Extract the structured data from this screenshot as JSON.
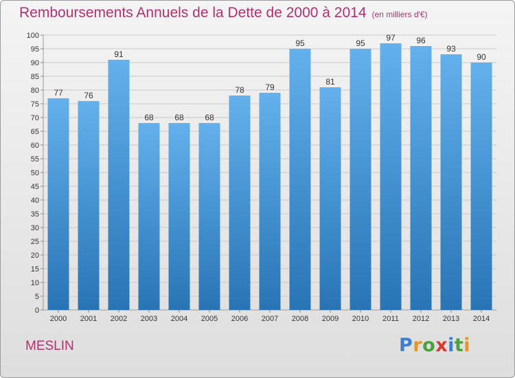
{
  "header": {
    "title": "Remboursements Annuels de la Dette de 2000 à 2014",
    "unit": "(en milliers d'€)"
  },
  "footer": {
    "commune": "MESLIN",
    "brand_letters": [
      "P",
      "r",
      "o",
      "x",
      "i",
      "t",
      "i"
    ],
    "brand_colors": [
      "#3a7fd0",
      "#e8971e",
      "#4aa23c",
      "#d9392e",
      "#3a7fd0",
      "#4aa23c",
      "#e8971e"
    ]
  },
  "colors": {
    "bar_top": "#63b0ec",
    "bar_bottom": "#2874b5",
    "title": "#b5306e",
    "grid": "#c9c9c9",
    "axis_text": "#333333"
  },
  "chart_data": {
    "type": "bar",
    "title": "Remboursements Annuels de la Dette de 2000 à 2014",
    "subtitle": "(en milliers d'€)",
    "xlabel": "",
    "ylabel": "",
    "categories": [
      "2000",
      "2001",
      "2002",
      "2003",
      "2004",
      "2005",
      "2006",
      "2007",
      "2008",
      "2009",
      "2010",
      "2011",
      "2012",
      "2013",
      "2014"
    ],
    "values": [
      77,
      76,
      91,
      68,
      68,
      68,
      78,
      79,
      95,
      81,
      95,
      97,
      96,
      93,
      90
    ],
    "ylim": [
      0,
      100
    ],
    "yticks": [
      0,
      5,
      10,
      15,
      20,
      25,
      30,
      35,
      40,
      45,
      50,
      55,
      60,
      65,
      70,
      75,
      80,
      85,
      90,
      95,
      100
    ],
    "grid": true,
    "data_labels": true,
    "legend": "none"
  }
}
